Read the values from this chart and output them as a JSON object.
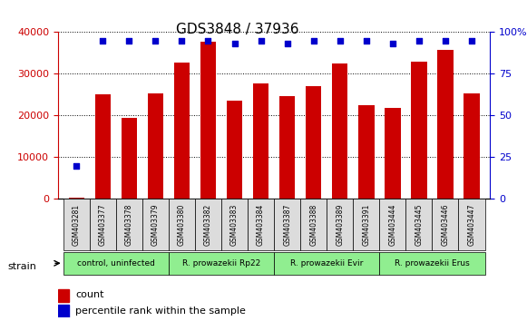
{
  "title": "GDS3848 / 37936",
  "samples": [
    "GSM403281",
    "GSM403377",
    "GSM403378",
    "GSM403379",
    "GSM403380",
    "GSM403382",
    "GSM403383",
    "GSM403384",
    "GSM403387",
    "GSM403388",
    "GSM403389",
    "GSM403391",
    "GSM403444",
    "GSM403445",
    "GSM403446",
    "GSM403447"
  ],
  "counts": [
    300,
    25000,
    19500,
    25300,
    32700,
    37800,
    23500,
    27800,
    24700,
    27100,
    32500,
    22500,
    21800,
    33000,
    35700,
    25300
  ],
  "percentile_ranks": [
    20,
    95,
    95,
    95,
    95,
    95,
    93,
    95,
    93,
    95,
    95,
    95,
    93,
    95,
    95,
    95
  ],
  "groups": [
    {
      "label": "control, uninfected",
      "start": 0,
      "end": 4,
      "color": "#90EE90"
    },
    {
      "label": "R. prowazekii Rp22",
      "start": 4,
      "end": 8,
      "color": "#90EE90"
    },
    {
      "label": "R. prowazekii Evir",
      "start": 8,
      "end": 12,
      "color": "#90EE90"
    },
    {
      "label": "R. prowazekii Erus",
      "start": 12,
      "end": 16,
      "color": "#90EE90"
    }
  ],
  "bar_color": "#CC0000",
  "dot_color": "#0000CC",
  "left_axis_color": "#CC0000",
  "right_axis_color": "#0000CC",
  "ylim_left": [
    0,
    40000
  ],
  "ylim_right": [
    0,
    100
  ],
  "yticks_left": [
    0,
    10000,
    20000,
    30000,
    40000
  ],
  "yticks_right": [
    0,
    25,
    50,
    75,
    100
  ],
  "ytick_labels_left": [
    "0",
    "10000",
    "20000",
    "30000",
    "40000"
  ],
  "ytick_labels_right": [
    "0",
    "25",
    "50",
    "75",
    "100%"
  ],
  "strain_label": "strain",
  "legend_count_label": "count",
  "legend_percentile_label": "percentile rank within the sample"
}
